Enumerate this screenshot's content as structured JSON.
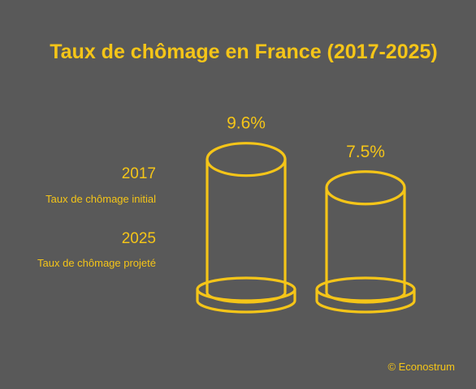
{
  "chart_data": {
    "type": "bar",
    "title": "Taux de chômage en France (2017-2025)",
    "unit": "%",
    "categories": [
      "2017",
      "2025"
    ],
    "values": [
      9.6,
      7.5
    ],
    "value_labels": [
      "9.6%",
      "7.5%"
    ],
    "legend": [
      {
        "year": "2017",
        "description": "Taux de chômage initial"
      },
      {
        "year": "2025",
        "description": "Taux de chômage projeté"
      }
    ],
    "bar_style": "cylinder-outline",
    "legend_placement": "left",
    "grid": false,
    "axes_visible": false
  },
  "colors": {
    "background": "#595959",
    "accent": "#f5c518"
  },
  "credit": "© Econostrum"
}
